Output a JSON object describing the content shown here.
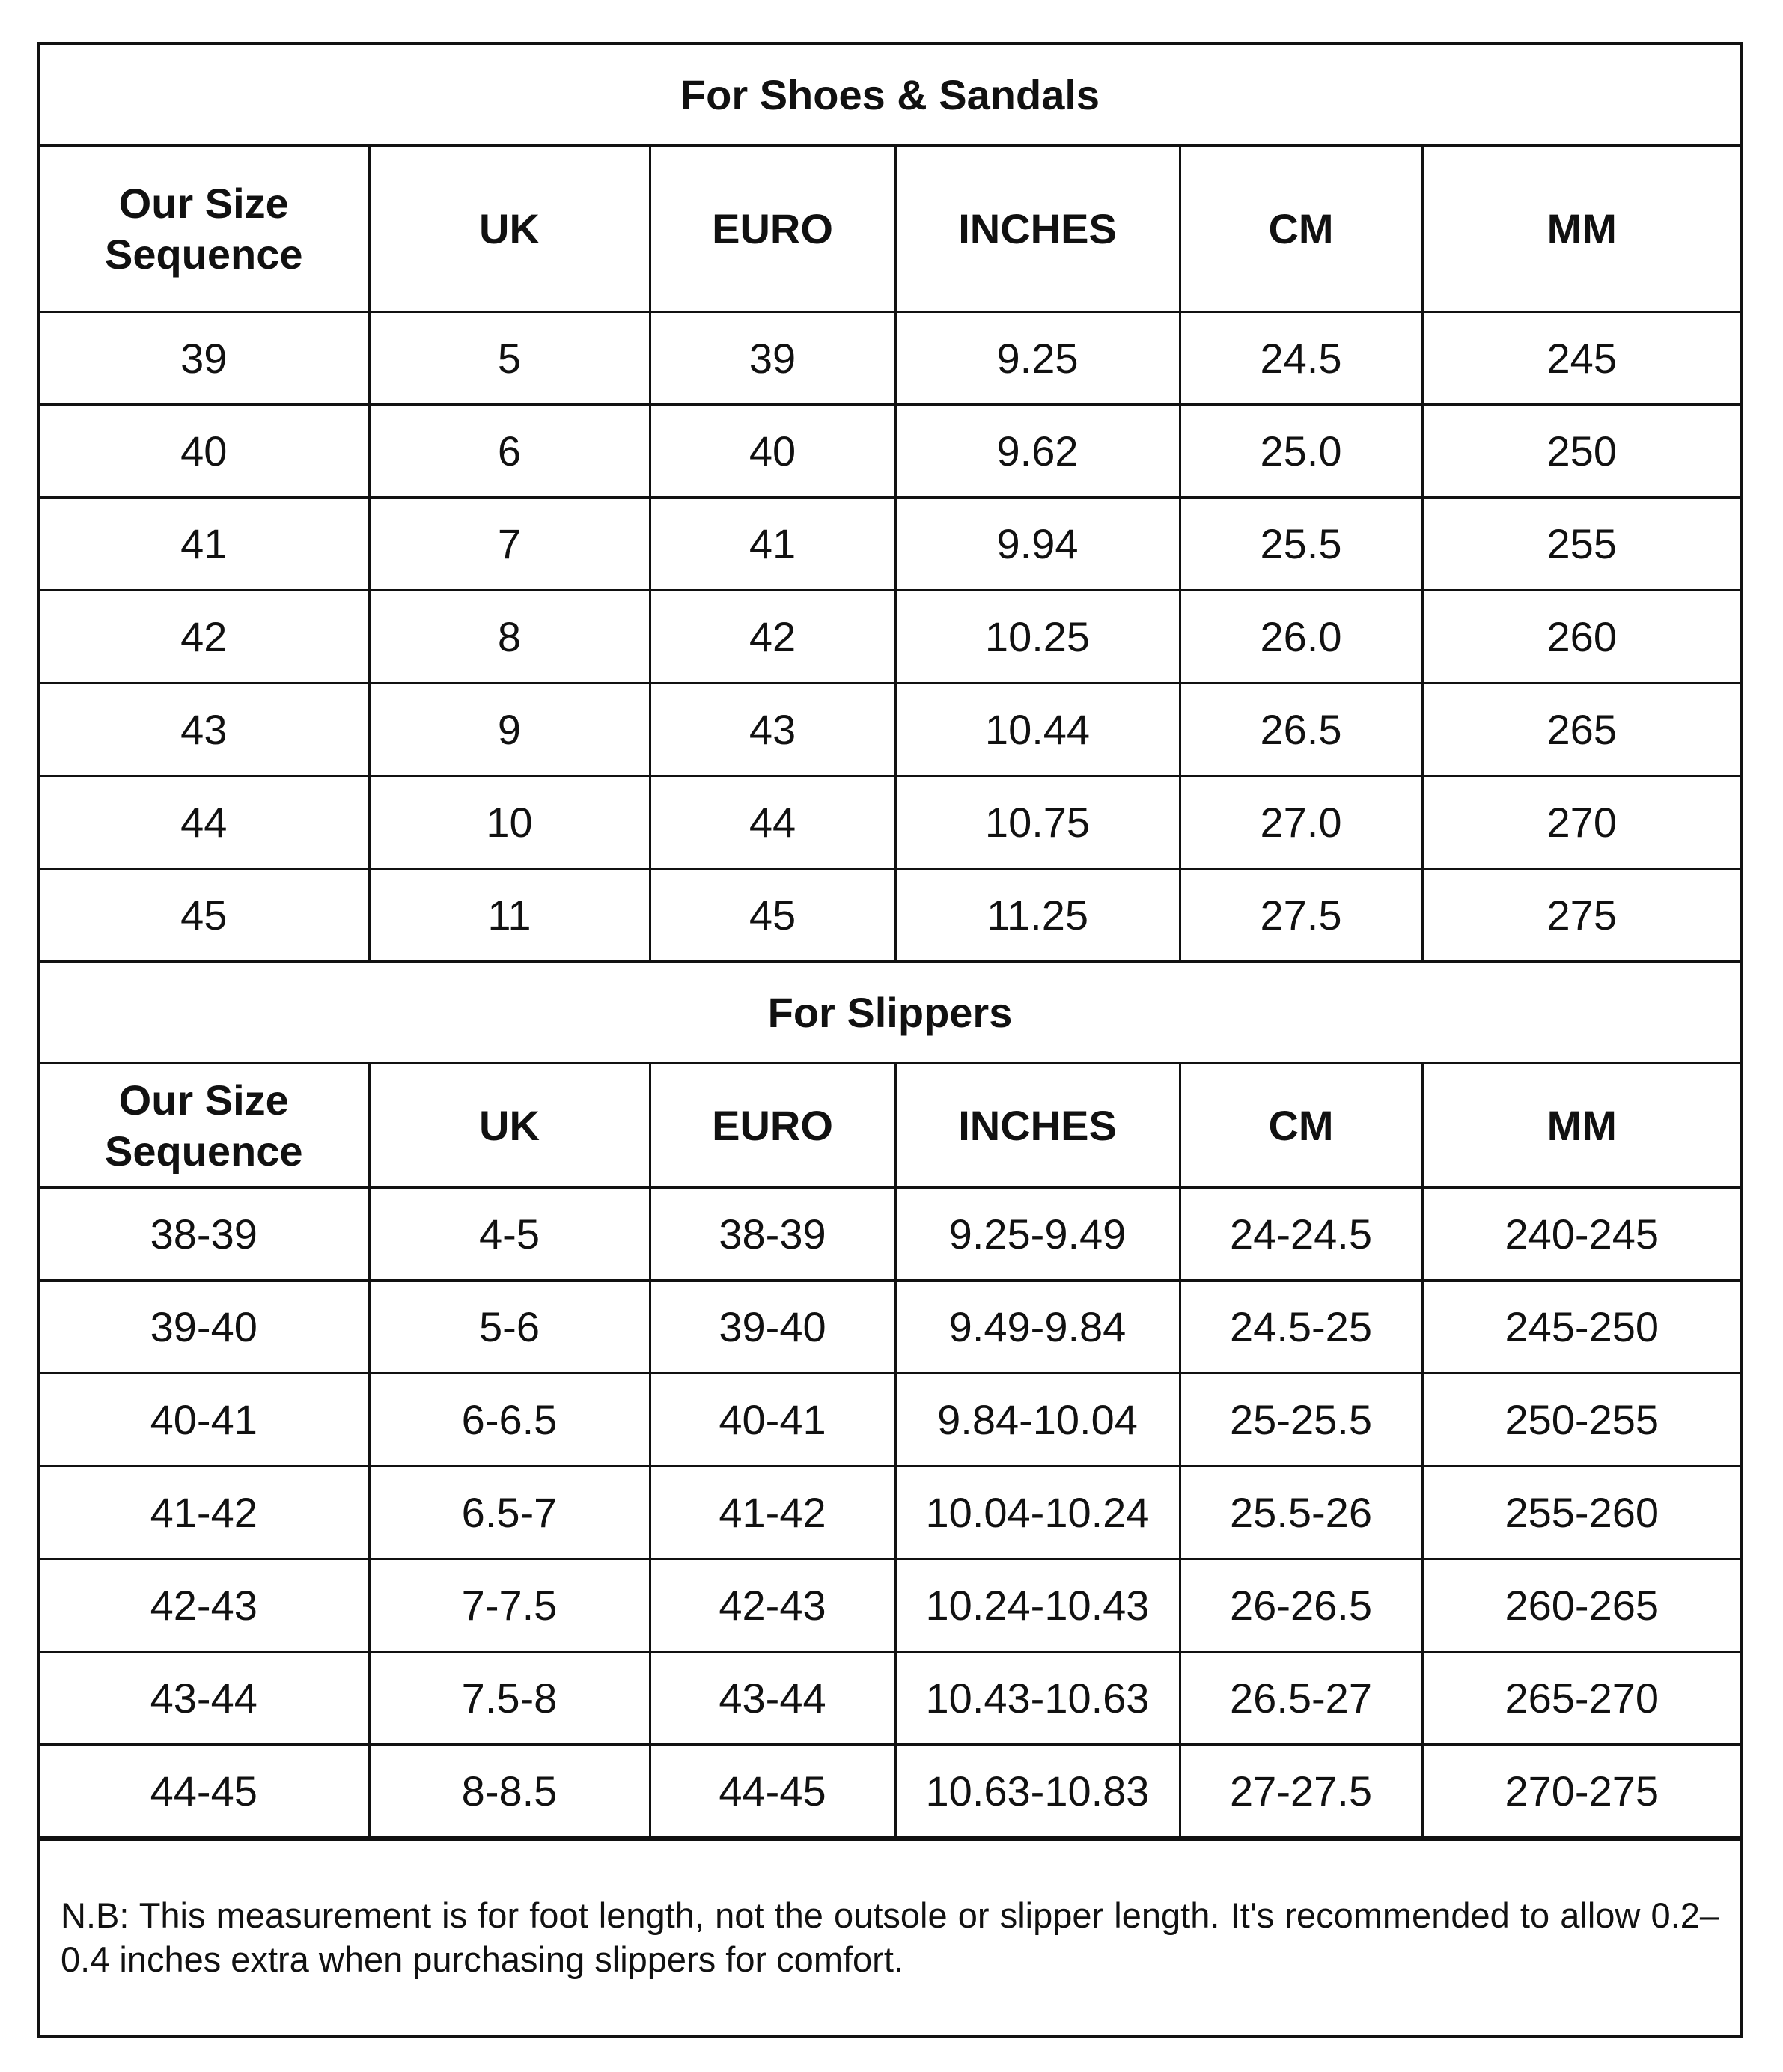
{
  "shoes": {
    "title": "For Shoes & Sandals",
    "headers": [
      "Our Size Sequence",
      "UK",
      "EURO",
      "INCHES",
      "CM",
      "MM"
    ],
    "rows": [
      [
        "39",
        "5",
        "39",
        "9.25",
        "24.5",
        "245"
      ],
      [
        "40",
        "6",
        "40",
        "9.62",
        "25.0",
        "250"
      ],
      [
        "41",
        "7",
        "41",
        "9.94",
        "25.5",
        "255"
      ],
      [
        "42",
        "8",
        "42",
        "10.25",
        "26.0",
        "260"
      ],
      [
        "43",
        "9",
        "43",
        "10.44",
        "26.5",
        "265"
      ],
      [
        "44",
        "10",
        "44",
        "10.75",
        "27.0",
        "270"
      ],
      [
        "45",
        "11",
        "45",
        "11.25",
        "27.5",
        "275"
      ]
    ]
  },
  "slippers": {
    "title": "For Slippers",
    "headers": [
      "Our Size Sequence",
      "UK",
      "EURO",
      "INCHES",
      "CM",
      "MM"
    ],
    "rows": [
      [
        "38-39",
        "4-5",
        "38-39",
        "9.25-9.49",
        "24-24.5",
        "240-245"
      ],
      [
        "39-40",
        "5-6",
        "39-40",
        "9.49-9.84",
        "24.5-25",
        "245-250"
      ],
      [
        "40-41",
        "6-6.5",
        "40-41",
        "9.84-10.04",
        "25-25.5",
        "250-255"
      ],
      [
        "41-42",
        "6.5-7",
        "41-42",
        "10.04-10.24",
        "25.5-26",
        "255-260"
      ],
      [
        "42-43",
        "7-7.5",
        "42-43",
        "10.24-10.43",
        "26-26.5",
        "260-265"
      ],
      [
        "43-44",
        "7.5-8",
        "43-44",
        "10.43-10.63",
        "26.5-27",
        "265-270"
      ],
      [
        "44-45",
        "8-8.5",
        "44-45",
        "10.63-10.83",
        "27-27.5",
        "270-275"
      ]
    ]
  },
  "note": "N.B: This measurement is for foot length, not the outsole or slipper length. It's recommended to allow 0.2–0.4 inches extra when purchasing slippers for comfort."
}
